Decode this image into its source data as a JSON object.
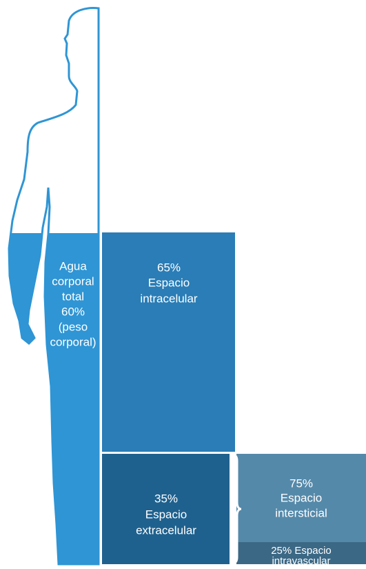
{
  "body": {
    "label": [
      "Agua",
      "corporal",
      "total",
      "60%",
      "(peso",
      "corporal)"
    ]
  },
  "boxes": [
    {
      "lines": [
        "65%",
        "Espacio",
        "intracelular"
      ]
    },
    {
      "lines": [
        "35%",
        "Espacio",
        "extracelular"
      ]
    },
    {
      "lines": [
        "75%",
        "Espacio",
        "intersticial"
      ]
    },
    {
      "lines": [
        "25% Espacio",
        "intravascular"
      ]
    }
  ]
}
